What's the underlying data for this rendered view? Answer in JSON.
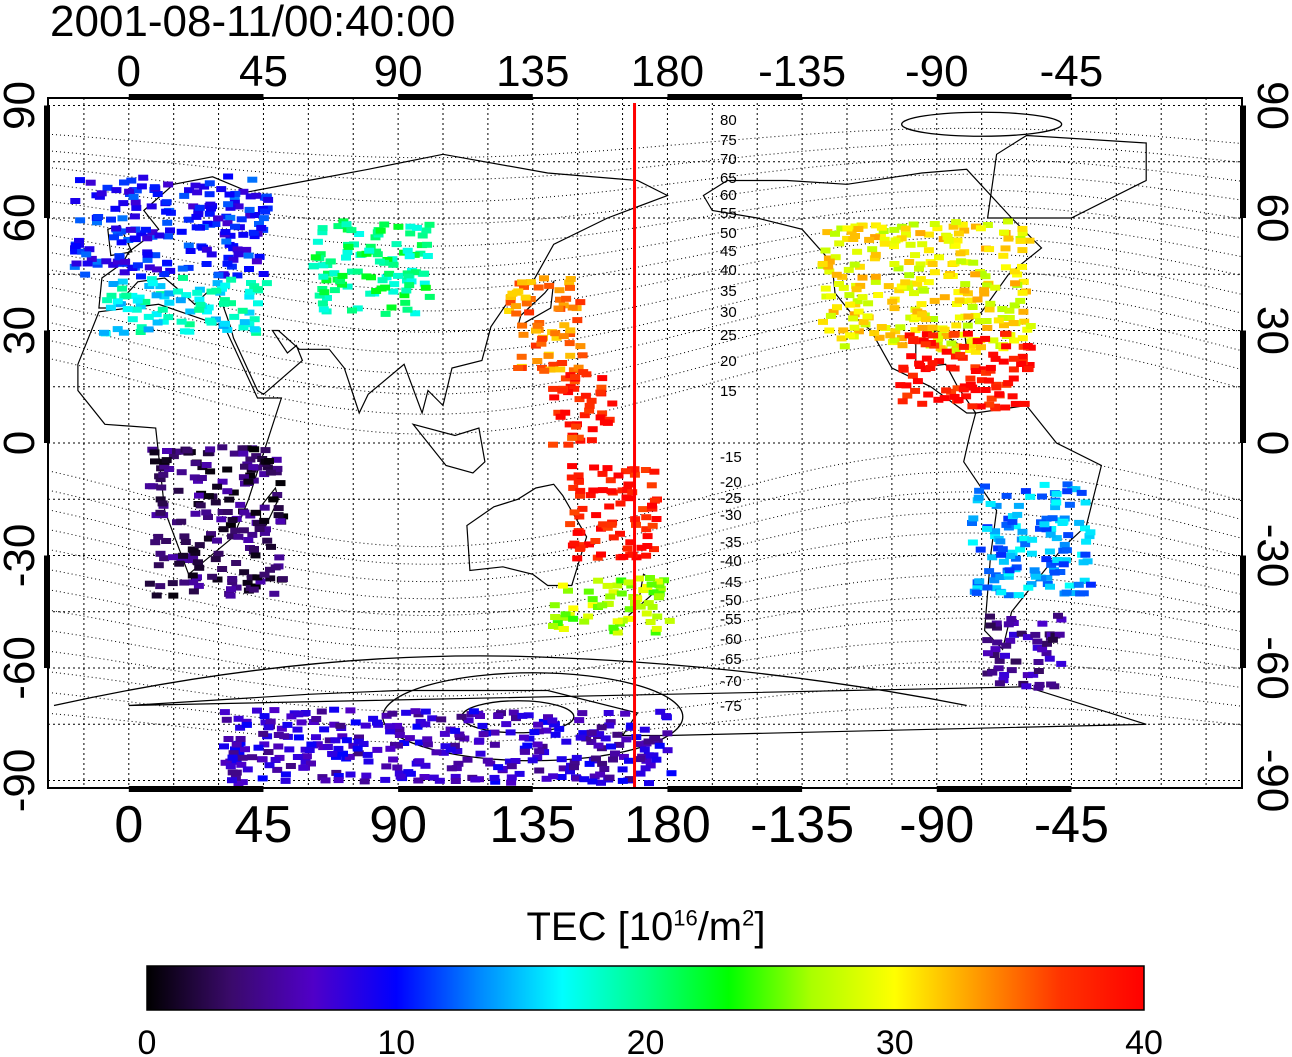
{
  "title": "2001-08-11/00:40:00",
  "map": {
    "top_lon_ticks": [
      "0",
      "45",
      "90",
      "135",
      "180",
      "-135",
      "-90",
      "-45"
    ],
    "bottom_lon_ticks": [
      "0",
      "45",
      "90",
      "135",
      "180",
      "-135",
      "-90",
      "-45"
    ],
    "lat_ticks": [
      "90",
      "60",
      "30",
      "0",
      "-30",
      "-60",
      "-90"
    ],
    "lon_range": [
      -27,
      372
    ],
    "lat_range": [
      -92,
      92
    ],
    "tick_lons": [
      0,
      45,
      90,
      135,
      180,
      225,
      270,
      315
    ],
    "tick_lats": [
      90,
      60,
      30,
      0,
      -30,
      -60,
      -90
    ],
    "grid": true,
    "red_line_lon": 169,
    "contour_labels": [
      "80",
      "75",
      "70",
      "65",
      "60",
      "55",
      "50",
      "45",
      "40",
      "35",
      "30",
      "25",
      "20",
      "15",
      "-15",
      "-20",
      "-25",
      "-30",
      "-35",
      "-40",
      "-45",
      "-50",
      "-55",
      "-60",
      "-65",
      "-70",
      "-75"
    ]
  },
  "colorbar": {
    "title_main": "TEC  [10",
    "title_sup1": "16",
    "title_mid": "/m",
    "title_sup2": "2",
    "title_end": "]",
    "tick_labels": [
      "0",
      "10",
      "20",
      "30",
      "40"
    ],
    "range": [
      0,
      40
    ],
    "colors": [
      "#000000",
      "#3a0a6a",
      "#5000c8",
      "#0000ff",
      "#0088ff",
      "#00ffff",
      "#00ff88",
      "#00ff00",
      "#aaff00",
      "#ffff00",
      "#ff9900",
      "#ff3300",
      "#ff0000"
    ]
  },
  "chart_data": {
    "type": "heatmap",
    "title": "2001-08-11/00:40:00",
    "colorbar_label": "TEC [10^16/m^2]",
    "value_range": [
      0,
      40
    ],
    "regions": [
      {
        "lon": [
          -20,
          45
        ],
        "lat": [
          45,
          72
        ],
        "tec": 10
      },
      {
        "lon": [
          -10,
          45
        ],
        "lat": [
          30,
          45
        ],
        "tec": 17
      },
      {
        "lon": [
          60,
          100
        ],
        "lat": [
          35,
          60
        ],
        "tec": 20
      },
      {
        "lon": [
          125,
          150
        ],
        "lat": [
          20,
          45
        ],
        "tec": 34
      },
      {
        "lon": [
          140,
          160
        ],
        "lat": [
          0,
          20
        ],
        "tec": 38
      },
      {
        "lon": [
          145,
          175
        ],
        "lat": [
          -30,
          -5
        ],
        "tec": 39
      },
      {
        "lon": [
          140,
          180
        ],
        "lat": [
          -50,
          -35
        ],
        "tec": 27
      },
      {
        "lon": [
          5,
          50
        ],
        "lat": [
          -40,
          0
        ],
        "tec": 3
      },
      {
        "lon": [
          230,
          300
        ],
        "lat": [
          25,
          60
        ],
        "tec": 30
      },
      {
        "lon": [
          255,
          300
        ],
        "lat": [
          10,
          30
        ],
        "tec": 39
      },
      {
        "lon": [
          280,
          320
        ],
        "lat": [
          -40,
          -10
        ],
        "tec": 14
      },
      {
        "lon": [
          285,
          310
        ],
        "lat": [
          -65,
          -45
        ],
        "tec": 5
      },
      {
        "lon": [
          30,
          180
        ],
        "lat": [
          -90,
          -70
        ],
        "tec": 7
      }
    ]
  }
}
